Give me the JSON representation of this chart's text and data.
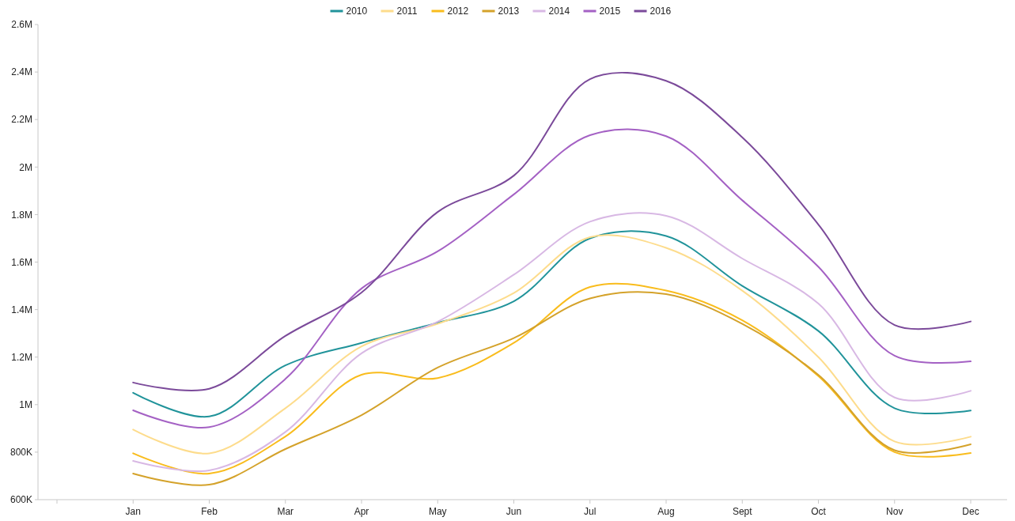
{
  "chart_data": {
    "type": "line",
    "categories": [
      null,
      "Jan",
      "Feb",
      "Mar",
      "Apr",
      "May",
      "Jun",
      "Jul",
      "Aug",
      "Sept",
      "Oct",
      "Nov",
      "Dec"
    ],
    "ylim": [
      600000,
      2600000
    ],
    "yticks": [
      {
        "value": 600000,
        "label": "600K"
      },
      {
        "value": 800000,
        "label": "800K"
      },
      {
        "value": 1000000,
        "label": "1M"
      },
      {
        "value": 1200000,
        "label": "1.2M"
      },
      {
        "value": 1400000,
        "label": "1.4M"
      },
      {
        "value": 1600000,
        "label": "1.6M"
      },
      {
        "value": 1800000,
        "label": "1.8M"
      },
      {
        "value": 2000000,
        "label": "2M"
      },
      {
        "value": 2200000,
        "label": "2.2M"
      },
      {
        "value": 2400000,
        "label": "2.4M"
      },
      {
        "value": 2600000,
        "label": "2.6M"
      }
    ],
    "grid": false,
    "legend": "top",
    "marker": "none",
    "line_style": "solid",
    "series": [
      {
        "name": "2010",
        "color": "#20939a",
        "values": [
          null,
          1050000,
          950000,
          1165000,
          1260000,
          1345000,
          1435000,
          1700000,
          1710000,
          1500000,
          1310000,
          985000,
          975000
        ]
      },
      {
        "name": "2011",
        "color": "#fddc8c",
        "values": [
          null,
          895000,
          795000,
          985000,
          1245000,
          1340000,
          1470000,
          1705000,
          1660000,
          1480000,
          1200000,
          845000,
          865000
        ]
      },
      {
        "name": "2012",
        "color": "#f9bc1c",
        "values": [
          null,
          795000,
          710000,
          866000,
          1126000,
          1112000,
          1260000,
          1495000,
          1480000,
          1355000,
          1120000,
          800000,
          796000
        ]
      },
      {
        "name": "2013",
        "color": "#d4a22a",
        "values": [
          null,
          710000,
          663000,
          813000,
          956000,
          1156000,
          1280000,
          1447000,
          1465000,
          1340000,
          1125000,
          808000,
          833000
        ]
      },
      {
        "name": "2014",
        "color": "#d8b8e4",
        "values": [
          null,
          763000,
          723000,
          885000,
          1216000,
          1349000,
          1547000,
          1770000,
          1795000,
          1615000,
          1425000,
          1030000,
          1058000
        ]
      },
      {
        "name": "2015",
        "color": "#a461c4",
        "values": [
          null,
          976000,
          905000,
          1108000,
          1489000,
          1645000,
          1885000,
          2134000,
          2130000,
          1860000,
          1580000,
          1206000,
          1182000
        ]
      },
      {
        "name": "2016",
        "color": "#7b4a9a",
        "values": [
          null,
          1093000,
          1067000,
          1289000,
          1472000,
          1811000,
          1964000,
          2370000,
          2363000,
          2125000,
          1758000,
          1335000,
          1350000
        ]
      }
    ]
  }
}
